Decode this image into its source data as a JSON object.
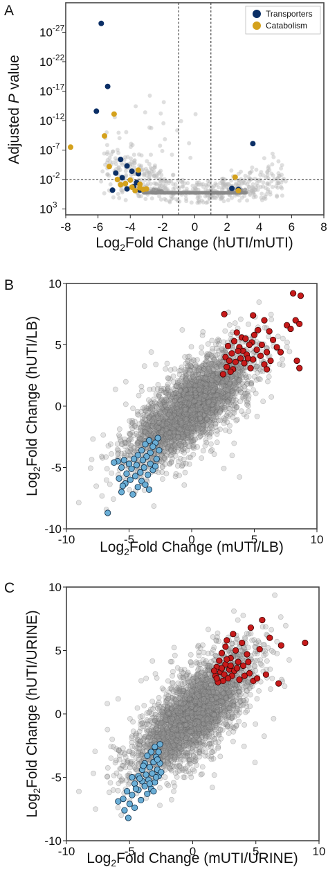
{
  "colors": {
    "transporters": "#0b2f66",
    "catabolism": "#d4a11c",
    "background_gene": "#b8b8b8",
    "background_dense": "#8a8a8a",
    "up_regulated": "#c61a1a",
    "down_regulated": "#6aaed6"
  },
  "chart_data": [
    {
      "panel": "A",
      "type": "scatter",
      "xlabel_main": "Log",
      "xlabel_sub": "2",
      "xlabel_rest": "Fold Change (hUTI/mUTI)",
      "ylabel_pre": "Adjusted ",
      "ylabel_italic": "P",
      "ylabel_post": " value",
      "xlim": [
        -8,
        8
      ],
      "ylim_neglog10": [
        -4,
        32
      ],
      "y_scale": "log (inverted, adjusted P value)",
      "x_ticks": [
        "-8",
        "-6",
        "-4",
        "-2",
        "0",
        "2",
        "4",
        "6",
        "8"
      ],
      "y_ticks": [
        {
          "base": "10",
          "exp": "3",
          "p_exp": 3
        },
        {
          "base": "10",
          "exp": "-2",
          "p_exp": -2
        },
        {
          "base": "10",
          "exp": "-7",
          "p_exp": -7
        },
        {
          "base": "10",
          "exp": "-12",
          "p_exp": -12
        },
        {
          "base": "10",
          "exp": "-17",
          "p_exp": -17
        },
        {
          "base": "10",
          "exp": "-22",
          "p_exp": -22
        },
        {
          "base": "10",
          "exp": "-27",
          "p_exp": -27
        }
      ],
      "vertical_thresholds": [
        -1,
        1
      ],
      "horizontal_threshold_p_exp": -2,
      "legend_position": "top-right",
      "legend": [
        {
          "label": "Transporters",
          "color_key": "transporters"
        },
        {
          "label": "Catabolism",
          "color_key": "catabolism"
        }
      ],
      "series": [
        {
          "name": "Transporters",
          "color_key": "transporters",
          "points": [
            {
              "x": -5.8,
              "p_exp": -28.5
            },
            {
              "x": -5.4,
              "p_exp": -17.8
            },
            {
              "x": -6.1,
              "p_exp": -13.6
            },
            {
              "x": -4.6,
              "p_exp": -5.4
            },
            {
              "x": -4.2,
              "p_exp": -4.3
            },
            {
              "x": -4.9,
              "p_exp": -3.1
            },
            {
              "x": -3.9,
              "p_exp": -3.4
            },
            {
              "x": -4.5,
              "p_exp": -2.3
            },
            {
              "x": -3.6,
              "p_exp": -1.5
            },
            {
              "x": -3.8,
              "p_exp": -0.8
            },
            {
              "x": -4.2,
              "p_exp": -0.4
            },
            {
              "x": -3.4,
              "p_exp": -0.2
            },
            {
              "x": -5.1,
              "p_exp": -0.2
            },
            {
              "x": -3.5,
              "p_exp": -3.0
            },
            {
              "x": 3.6,
              "p_exp": -8.1
            },
            {
              "x": 2.3,
              "p_exp": -0.5
            },
            {
              "x": 2.7,
              "p_exp": -0.3
            }
          ]
        },
        {
          "name": "Catabolism",
          "color_key": "catabolism",
          "points": [
            {
              "x": -7.7,
              "p_exp": -7.5
            },
            {
              "x": -5.0,
              "p_exp": -13.1
            },
            {
              "x": -5.6,
              "p_exp": -9.4
            },
            {
              "x": -5.3,
              "p_exp": -4.2
            },
            {
              "x": -4.8,
              "p_exp": -2.0
            },
            {
              "x": -4.6,
              "p_exp": -1.1
            },
            {
              "x": -4.0,
              "p_exp": -1.9
            },
            {
              "x": -3.9,
              "p_exp": -0.7
            },
            {
              "x": -3.4,
              "p_exp": -1.2
            },
            {
              "x": -3.2,
              "p_exp": -0.3
            },
            {
              "x": -3.7,
              "p_exp": -0.1
            },
            {
              "x": -3.4,
              "p_exp": -0.6
            },
            {
              "x": -3.0,
              "p_exp": -0.4
            },
            {
              "x": -4.3,
              "p_exp": -1.3
            },
            {
              "x": -3.5,
              "p_exp": -3.6
            },
            {
              "x": 2.5,
              "p_exp": -2.4
            },
            {
              "x": 2.7,
              "p_exp": -0.1
            }
          ]
        }
      ]
    },
    {
      "panel": "B",
      "type": "scatter",
      "xlabel_main": "Log",
      "xlabel_sub": "2",
      "xlabel_rest": "Fold Change (mUTI/LB)",
      "ylabel_main": "Log",
      "ylabel_sub": "2",
      "ylabel_rest": "Fold Change (hUTI/LB)",
      "xlim": [
        -10,
        10
      ],
      "ylim": [
        -10,
        10
      ],
      "x_ticks": [
        "-10",
        "-5",
        "0",
        "5",
        "10"
      ],
      "y_ticks": [
        "-10",
        "-5",
        "0",
        "5",
        "10"
      ],
      "up_regulated": [
        {
          "x": 8.1,
          "y": 9.2
        },
        {
          "x": 8.7,
          "y": 9.0
        },
        {
          "x": 2.6,
          "y": 7.5
        },
        {
          "x": 4.9,
          "y": 7.4
        },
        {
          "x": 5.8,
          "y": 7.0
        },
        {
          "x": 8.3,
          "y": 7.0
        },
        {
          "x": 8.6,
          "y": 6.7
        },
        {
          "x": 7.6,
          "y": 6.6
        },
        {
          "x": 7.9,
          "y": 6.3
        },
        {
          "x": 5.3,
          "y": 6.2
        },
        {
          "x": 6.2,
          "y": 6.1
        },
        {
          "x": 3.6,
          "y": 6.0
        },
        {
          "x": 4.0,
          "y": 5.6
        },
        {
          "x": 5.0,
          "y": 5.8
        },
        {
          "x": 4.3,
          "y": 5.5
        },
        {
          "x": 6.5,
          "y": 5.4
        },
        {
          "x": 3.4,
          "y": 5.3
        },
        {
          "x": 4.8,
          "y": 5.2
        },
        {
          "x": 5.6,
          "y": 5.0
        },
        {
          "x": 4.6,
          "y": 5.0
        },
        {
          "x": 2.9,
          "y": 4.9
        },
        {
          "x": 3.8,
          "y": 4.8
        },
        {
          "x": 5.2,
          "y": 4.6
        },
        {
          "x": 4.1,
          "y": 4.5
        },
        {
          "x": 6.0,
          "y": 4.4
        },
        {
          "x": 3.2,
          "y": 4.3
        },
        {
          "x": 4.4,
          "y": 4.2
        },
        {
          "x": 5.5,
          "y": 4.1
        },
        {
          "x": 2.7,
          "y": 4.0
        },
        {
          "x": 3.9,
          "y": 3.9
        },
        {
          "x": 4.9,
          "y": 3.8
        },
        {
          "x": 6.3,
          "y": 3.7
        },
        {
          "x": 3.5,
          "y": 3.6
        },
        {
          "x": 4.2,
          "y": 3.5
        },
        {
          "x": 5.8,
          "y": 3.4
        },
        {
          "x": 2.8,
          "y": 3.2
        },
        {
          "x": 4.7,
          "y": 3.1
        },
        {
          "x": 3.3,
          "y": 3.0
        },
        {
          "x": 6.0,
          "y": 3.0
        },
        {
          "x": 2.5,
          "y": 2.6
        },
        {
          "x": 3.1,
          "y": 2.8
        },
        {
          "x": 8.4,
          "y": 3.7
        },
        {
          "x": 8.6,
          "y": 3.1
        },
        {
          "x": 7.1,
          "y": 4.4
        },
        {
          "x": 6.8,
          "y": 4.8
        },
        {
          "x": 3.0,
          "y": 3.7
        },
        {
          "x": 3.7,
          "y": 4.5
        },
        {
          "x": 4.5,
          "y": 3.9
        }
      ],
      "down_regulated": [
        {
          "x": -2.7,
          "y": -2.6
        },
        {
          "x": -2.9,
          "y": -3.0
        },
        {
          "x": -3.4,
          "y": -2.8
        },
        {
          "x": -3.1,
          "y": -3.3
        },
        {
          "x": -3.7,
          "y": -3.1
        },
        {
          "x": -2.6,
          "y": -3.6
        },
        {
          "x": -3.3,
          "y": -3.8
        },
        {
          "x": -4.0,
          "y": -3.6
        },
        {
          "x": -3.6,
          "y": -4.1
        },
        {
          "x": -4.3,
          "y": -4.0
        },
        {
          "x": -2.8,
          "y": -4.3
        },
        {
          "x": -3.9,
          "y": -4.4
        },
        {
          "x": -4.6,
          "y": -4.3
        },
        {
          "x": -5.4,
          "y": -4.4
        },
        {
          "x": -5.9,
          "y": -4.5
        },
        {
          "x": -5.0,
          "y": -4.7
        },
        {
          "x": -4.4,
          "y": -4.8
        },
        {
          "x": -3.3,
          "y": -4.7
        },
        {
          "x": -5.6,
          "y": -5.0
        },
        {
          "x": -4.8,
          "y": -5.1
        },
        {
          "x": -3.8,
          "y": -5.0
        },
        {
          "x": -4.1,
          "y": -5.4
        },
        {
          "x": -5.2,
          "y": -5.5
        },
        {
          "x": -4.5,
          "y": -5.7
        },
        {
          "x": -3.5,
          "y": -5.6
        },
        {
          "x": -5.8,
          "y": -5.9
        },
        {
          "x": -4.9,
          "y": -6.0
        },
        {
          "x": -4.0,
          "y": -6.1
        },
        {
          "x": -3.7,
          "y": -6.4
        },
        {
          "x": -5.3,
          "y": -6.3
        },
        {
          "x": -4.3,
          "y": -6.6
        },
        {
          "x": -3.4,
          "y": -6.8
        },
        {
          "x": -5.6,
          "y": -7.0
        },
        {
          "x": -4.7,
          "y": -7.2
        },
        {
          "x": -6.7,
          "y": -8.7
        },
        {
          "x": -3.1,
          "y": -5.2
        },
        {
          "x": -2.9,
          "y": -4.9
        },
        {
          "x": -6.2,
          "y": -4.6
        },
        {
          "x": -5.5,
          "y": -6.5
        }
      ],
      "background": {
        "count": 3200,
        "distribution": "dense diagonal cloud around y ≈ x, centered near (0, 0)"
      }
    },
    {
      "panel": "C",
      "type": "scatter",
      "xlabel_main": "Log",
      "xlabel_sub": "2",
      "xlabel_rest": "Fold Change (mUTI/URINE)",
      "ylabel_main": "Log",
      "ylabel_sub": "2",
      "ylabel_rest": "Fold Change (hUTI/URINE)",
      "xlim": [
        -10,
        10
      ],
      "ylim": [
        -10,
        10
      ],
      "x_ticks": [
        "-10",
        "-5",
        "0",
        "5",
        "10"
      ],
      "y_ticks": [
        "-10",
        "-5",
        "0",
        "5",
        "10"
      ],
      "up_regulated": [
        {
          "x": 8.9,
          "y": 5.6
        },
        {
          "x": 5.5,
          "y": 7.4
        },
        {
          "x": 4.6,
          "y": 6.8
        },
        {
          "x": 3.2,
          "y": 6.3
        },
        {
          "x": 6.1,
          "y": 6.0
        },
        {
          "x": 7.0,
          "y": 5.4
        },
        {
          "x": 3.9,
          "y": 5.6
        },
        {
          "x": 2.7,
          "y": 5.8
        },
        {
          "x": 5.3,
          "y": 5.1
        },
        {
          "x": 3.4,
          "y": 5.0
        },
        {
          "x": 2.3,
          "y": 4.8
        },
        {
          "x": 4.3,
          "y": 4.7
        },
        {
          "x": 3.0,
          "y": 4.4
        },
        {
          "x": 2.1,
          "y": 4.2
        },
        {
          "x": 3.6,
          "y": 4.1
        },
        {
          "x": 2.6,
          "y": 3.9
        },
        {
          "x": 4.0,
          "y": 3.8
        },
        {
          "x": 1.9,
          "y": 3.7
        },
        {
          "x": 2.9,
          "y": 3.5
        },
        {
          "x": 3.3,
          "y": 3.4
        },
        {
          "x": 2.2,
          "y": 3.3
        },
        {
          "x": 4.5,
          "y": 3.2
        },
        {
          "x": 2.5,
          "y": 3.1
        },
        {
          "x": 3.1,
          "y": 3.0
        },
        {
          "x": 1.8,
          "y": 3.0
        },
        {
          "x": 2.8,
          "y": 2.8
        },
        {
          "x": 5.8,
          "y": 3.1
        },
        {
          "x": 6.8,
          "y": 2.4
        },
        {
          "x": 4.8,
          "y": 2.6
        },
        {
          "x": 2.4,
          "y": 2.6
        },
        {
          "x": 3.7,
          "y": 2.7
        },
        {
          "x": 2.0,
          "y": 2.5
        },
        {
          "x": 4.1,
          "y": 3.0
        },
        {
          "x": 2.7,
          "y": 4.3
        },
        {
          "x": 3.5,
          "y": 3.6
        },
        {
          "x": 1.7,
          "y": 3.4
        },
        {
          "x": 2.3,
          "y": 3.6
        },
        {
          "x": 3.0,
          "y": 3.8
        },
        {
          "x": 4.4,
          "y": 4.1
        },
        {
          "x": 1.9,
          "y": 2.8
        },
        {
          "x": 5.1,
          "y": 2.8
        },
        {
          "x": 2.6,
          "y": 5.3
        }
      ],
      "down_regulated": [
        {
          "x": -2.6,
          "y": -2.4
        },
        {
          "x": -3.0,
          "y": -2.6
        },
        {
          "x": -2.7,
          "y": -3.0
        },
        {
          "x": -3.3,
          "y": -3.0
        },
        {
          "x": -2.9,
          "y": -3.4
        },
        {
          "x": -3.6,
          "y": -3.3
        },
        {
          "x": -3.1,
          "y": -3.8
        },
        {
          "x": -2.6,
          "y": -3.9
        },
        {
          "x": -3.8,
          "y": -3.9
        },
        {
          "x": -3.4,
          "y": -4.2
        },
        {
          "x": -2.8,
          "y": -4.4
        },
        {
          "x": -4.0,
          "y": -4.4
        },
        {
          "x": -3.2,
          "y": -4.7
        },
        {
          "x": -3.7,
          "y": -4.8
        },
        {
          "x": -2.7,
          "y": -4.9
        },
        {
          "x": -4.3,
          "y": -4.9
        },
        {
          "x": -3.5,
          "y": -5.2
        },
        {
          "x": -4.0,
          "y": -5.3
        },
        {
          "x": -3.0,
          "y": -5.4
        },
        {
          "x": -4.6,
          "y": -5.5
        },
        {
          "x": -3.8,
          "y": -5.7
        },
        {
          "x": -3.3,
          "y": -5.9
        },
        {
          "x": -4.3,
          "y": -6.0
        },
        {
          "x": -5.2,
          "y": -6.1
        },
        {
          "x": -3.6,
          "y": -6.3
        },
        {
          "x": -4.8,
          "y": -6.4
        },
        {
          "x": -5.5,
          "y": -6.7
        },
        {
          "x": -4.1,
          "y": -6.8
        },
        {
          "x": -5.0,
          "y": -7.1
        },
        {
          "x": -5.4,
          "y": -7.6
        },
        {
          "x": -4.6,
          "y": -7.4
        },
        {
          "x": -5.1,
          "y": -8.2
        },
        {
          "x": -2.9,
          "y": -5.0
        },
        {
          "x": -3.9,
          "y": -4.1
        },
        {
          "x": -2.5,
          "y": -4.6
        },
        {
          "x": -4.5,
          "y": -5.9
        },
        {
          "x": -3.1,
          "y": -6.1
        },
        {
          "x": -4.2,
          "y": -5.1
        },
        {
          "x": -2.8,
          "y": -3.6
        },
        {
          "x": -3.4,
          "y": -5.5
        },
        {
          "x": -4.8,
          "y": -5.0
        },
        {
          "x": -5.9,
          "y": -6.9
        }
      ],
      "background": {
        "count": 3200,
        "distribution": "dense diagonal cloud around y ≈ x, centered near (0, 0)"
      }
    }
  ]
}
